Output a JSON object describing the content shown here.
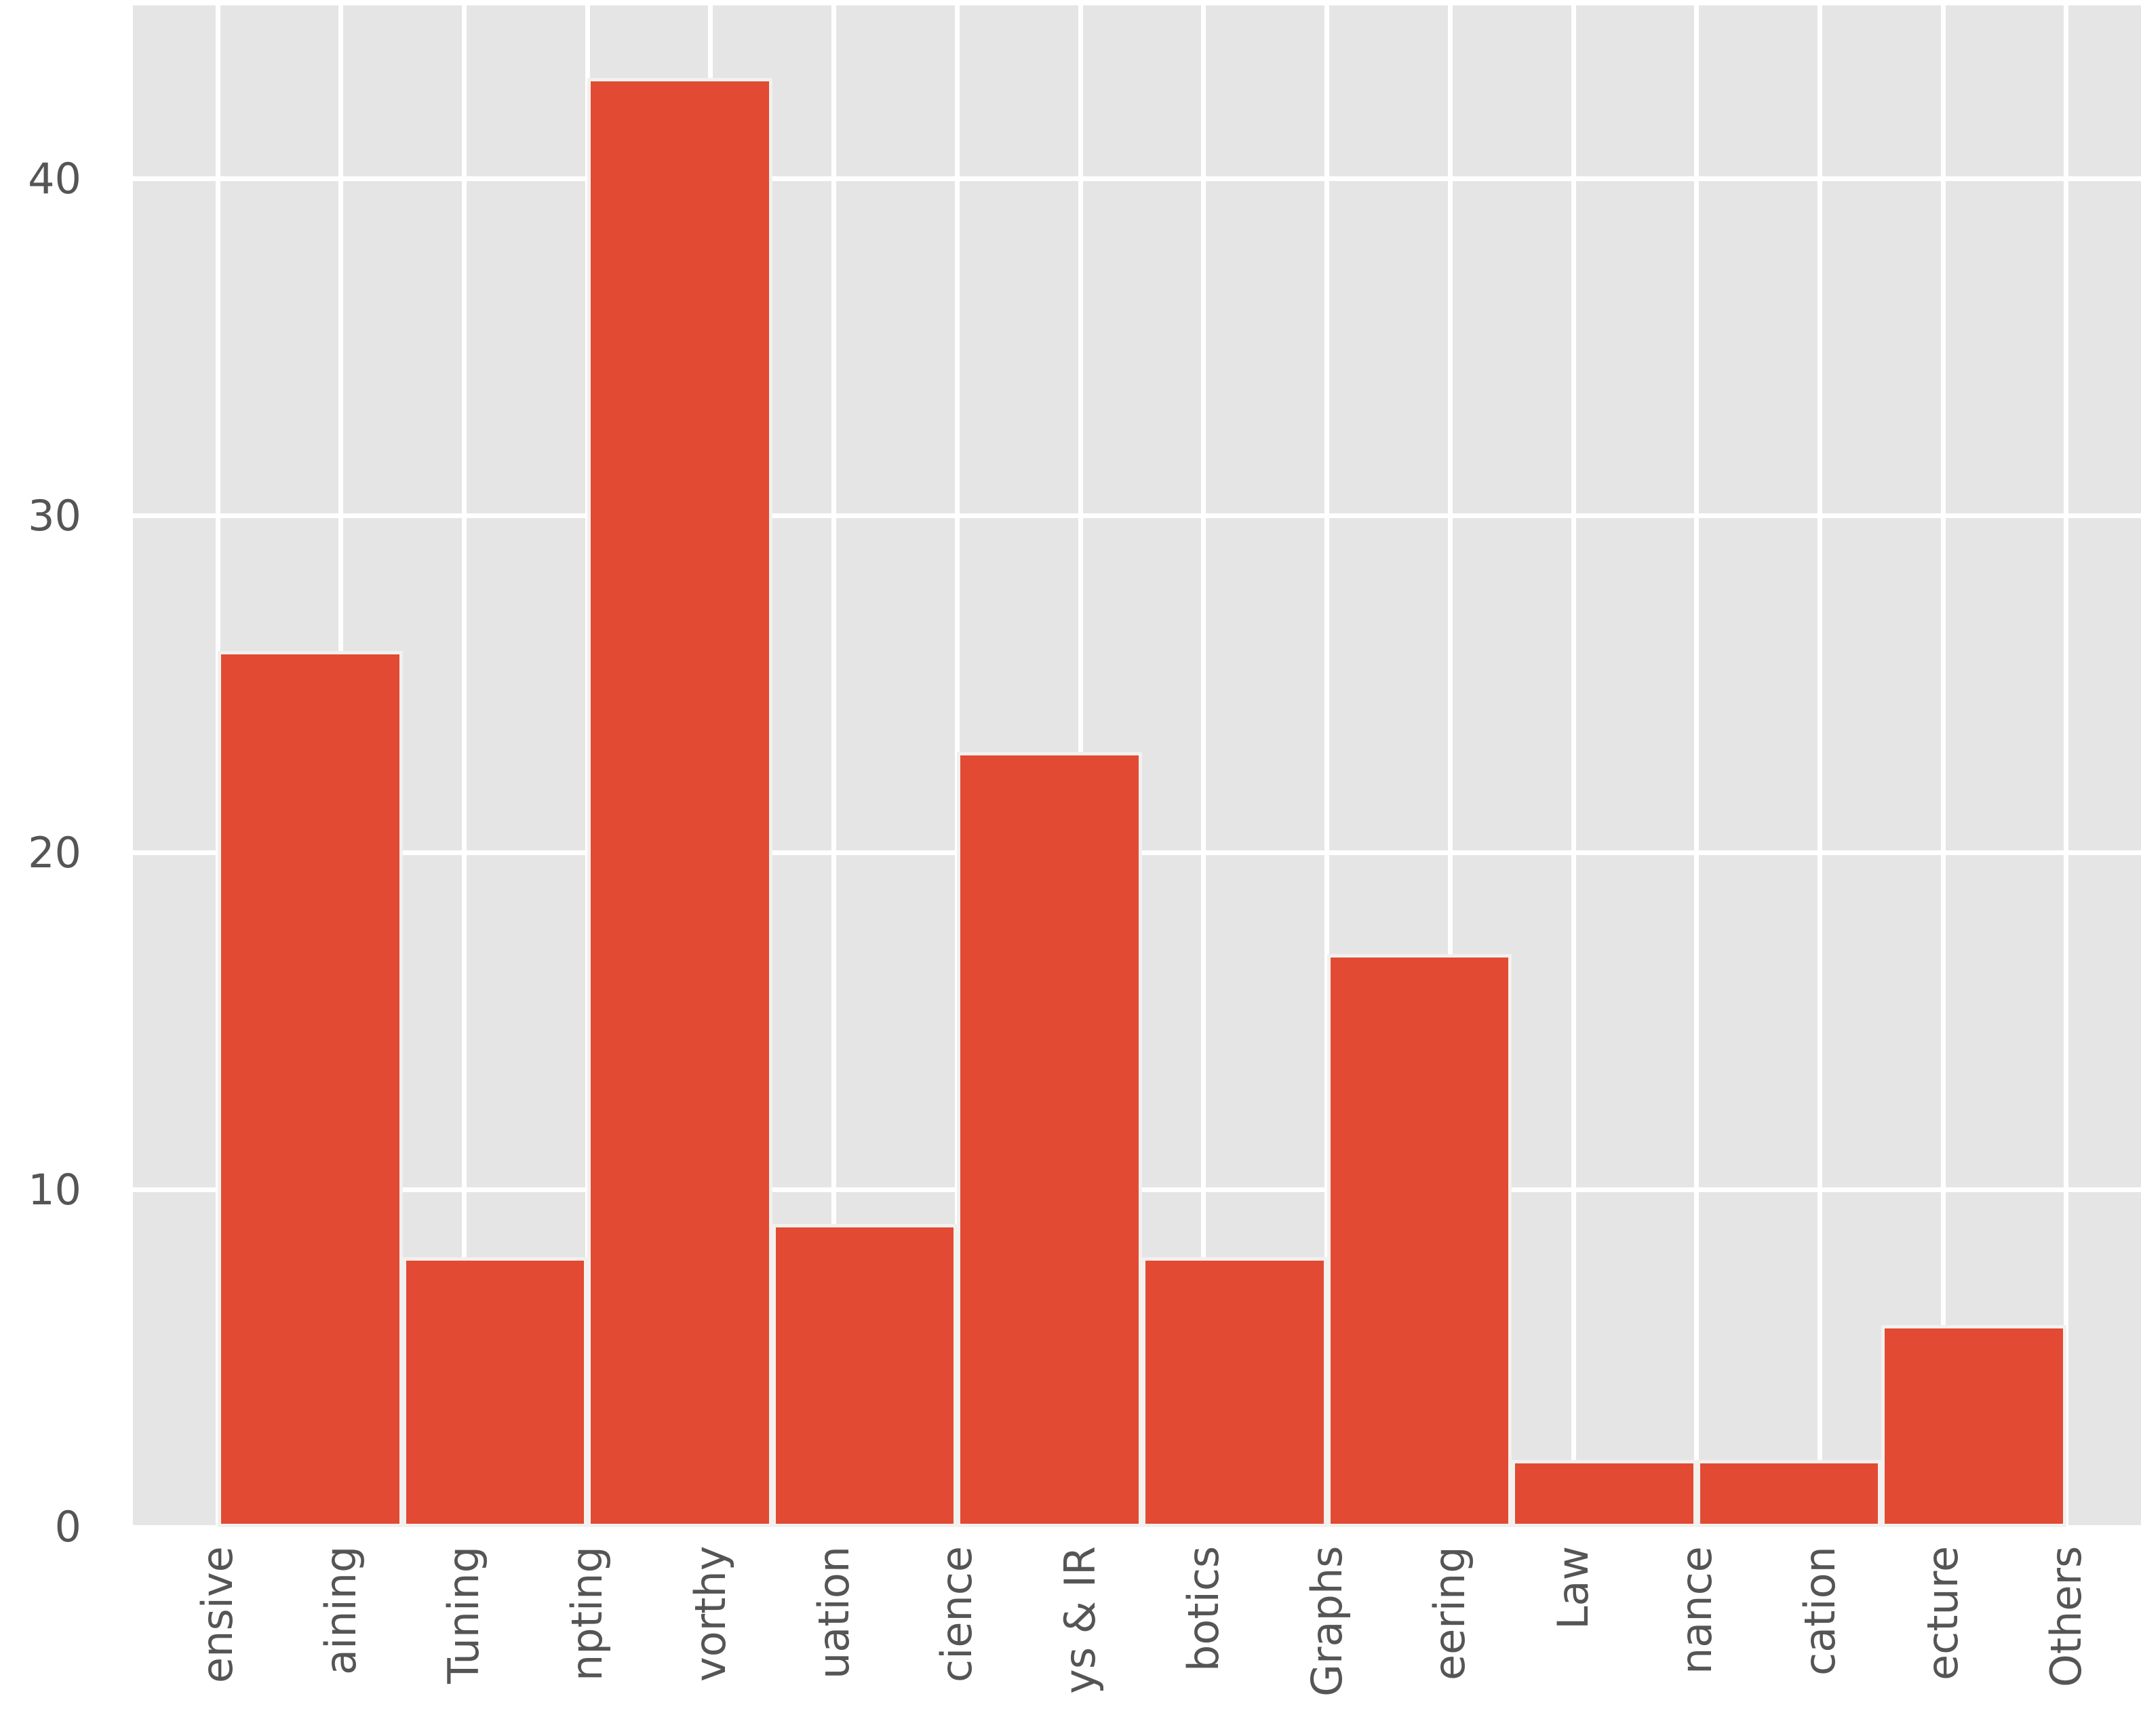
{
  "chart_data": {
    "type": "bar",
    "subtype": "histogram",
    "title": "",
    "xlabel": "",
    "ylabel": "",
    "x_tick_labels": [
      "ensive",
      "aining",
      "Tuning",
      "npting",
      "vorthy",
      "uation",
      "cience",
      "ys & IR",
      "botics",
      "Graphs",
      "eering",
      "Law",
      "nance",
      "cation",
      "ecture",
      "Others"
    ],
    "x_tick_labels_note": "category labels rotated 90 degrees, truncated by the bottom image edge",
    "n_categories": 16,
    "bin_values": [
      26,
      8,
      43,
      9,
      23,
      8,
      17,
      2,
      2,
      6
    ],
    "bin_width_in_category_units": 1.5,
    "bin_edges_in_category_units": [
      0,
      1.5,
      3,
      4.5,
      6,
      7.5,
      9,
      10.5,
      12,
      13.5,
      15
    ],
    "y_ticks": [
      0,
      10,
      20,
      30,
      40
    ],
    "ylim": [
      0,
      45.15
    ],
    "grid": true,
    "legend": false,
    "colors": {
      "bar_fill": "#e24a33",
      "bar_edge": "#f2f1ee",
      "plot_background": "#e5e5e5",
      "gridline": "#ffffff",
      "tick_text": "#555555",
      "figure_background": "#ffffff"
    }
  }
}
